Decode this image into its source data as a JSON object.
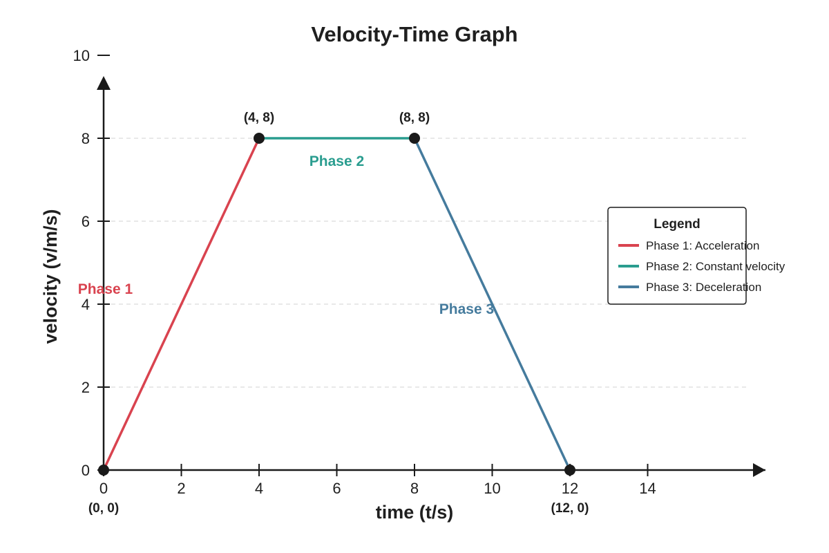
{
  "chart_data": {
    "type": "line",
    "title": "Velocity-Time Graph",
    "xlabel": "time (t/s)",
    "ylabel": "velocity (v/m/s)",
    "xlim": [
      0,
      16
    ],
    "ylim": [
      0,
      10
    ],
    "x_ticks": [
      0,
      2,
      4,
      6,
      8,
      10,
      12,
      14
    ],
    "y_ticks": [
      0,
      2,
      4,
      6,
      8,
      10
    ],
    "grid": "horizontal dashed at 2, 4, 6, 8",
    "legend_position": "right",
    "legend_title": "Legend",
    "series": [
      {
        "name": "Phase 1: Acceleration",
        "label": "Phase 1",
        "color": "#d9434f",
        "x": [
          0,
          4
        ],
        "y": [
          0,
          8
        ]
      },
      {
        "name": "Phase 2: Constant velocity",
        "label": "Phase 2",
        "color": "#2a9d8f",
        "x": [
          4,
          8
        ],
        "y": [
          8,
          8
        ]
      },
      {
        "name": "Phase 3: Deceleration",
        "label": "Phase 3",
        "color": "#457b9d",
        "x": [
          8,
          12
        ],
        "y": [
          8,
          0
        ]
      }
    ],
    "points": [
      {
        "x": 0,
        "y": 0,
        "label": "(0, 0)"
      },
      {
        "x": 4,
        "y": 8,
        "label": "(4, 8)"
      },
      {
        "x": 8,
        "y": 8,
        "label": "(8, 8)"
      },
      {
        "x": 12,
        "y": 0,
        "label": "(12, 0)"
      }
    ],
    "colors": {
      "axis": "#1a1a1a",
      "grid": "#d9d9d9",
      "point": "#1a1a1a"
    }
  }
}
